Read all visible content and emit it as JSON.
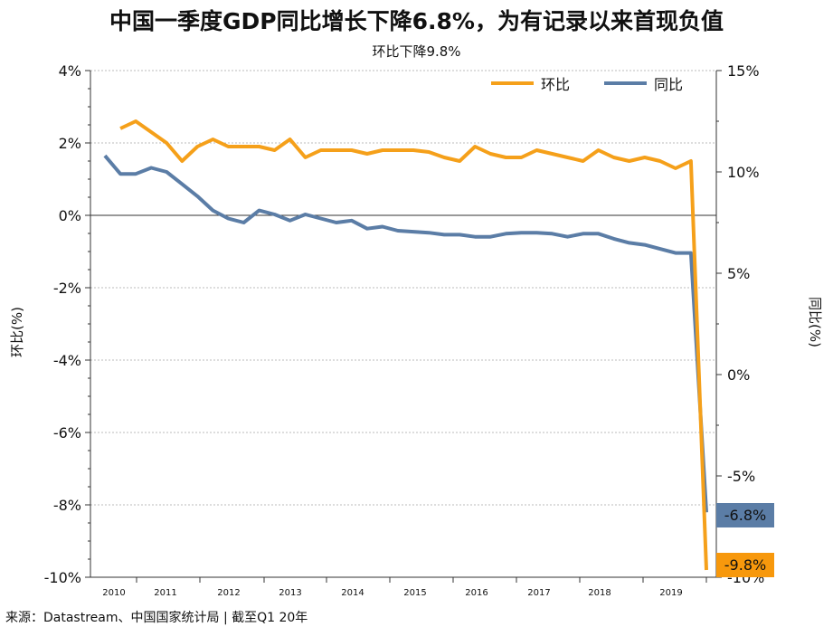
{
  "header": {
    "title": "中国一季度GDP同比增长下降6.8%，为有记录以来首现负值",
    "subtitle": "环比下降9.8%"
  },
  "footer": {
    "source": "来源：Datastream、中国国家统计局 | 截至Q1 20年"
  },
  "colors": {
    "qoq": "#f5a01a",
    "yoy": "#5b7da6",
    "qoq_badge": "#f7980c",
    "yoy_badge": "#5b7da6"
  },
  "chart_data": {
    "type": "line",
    "title": "中国一季度GDP同比增长下降6.8%，为有记录以来首现负值",
    "subtitle": "环比下降9.8%",
    "ylabel_left": "环比(%)",
    "ylabel_right": "同比(%)",
    "ylim_left": [
      -10,
      4
    ],
    "ylim_right": [
      -10,
      15
    ],
    "yticks_left": [
      "4%",
      "2%",
      "0%",
      "-2%",
      "-4%",
      "-6%",
      "-8%",
      "-10%"
    ],
    "yticks_right": [
      "15%",
      "10%",
      "5%",
      "0%",
      "-5%",
      "-10%"
    ],
    "xticks": [
      "2010",
      "2011",
      "2012",
      "2013",
      "2014",
      "2015",
      "2016",
      "2017",
      "2018",
      "2019"
    ],
    "grid": true,
    "legend_position": "top-right",
    "x_description": "quarters 2010Q1 – 2020Q1",
    "series": [
      {
        "name": "环比",
        "axis": "left",
        "values": [
          null,
          2.4,
          2.6,
          2.3,
          2.0,
          1.5,
          1.9,
          2.1,
          1.9,
          1.9,
          1.9,
          1.8,
          2.1,
          1.6,
          1.8,
          1.8,
          1.8,
          1.7,
          1.8,
          1.8,
          1.8,
          1.75,
          1.6,
          1.5,
          1.9,
          1.7,
          1.6,
          1.6,
          1.8,
          1.7,
          1.6,
          1.5,
          1.8,
          1.6,
          1.5,
          1.6,
          1.5,
          1.3,
          1.5,
          -9.8
        ]
      },
      {
        "name": "同比",
        "axis": "right",
        "values": [
          10.8,
          9.9,
          9.9,
          10.2,
          10.0,
          9.4,
          8.8,
          8.1,
          7.7,
          7.5,
          8.1,
          7.9,
          7.6,
          7.9,
          7.7,
          7.5,
          7.6,
          7.2,
          7.3,
          7.1,
          7.05,
          7.0,
          6.9,
          6.9,
          6.8,
          6.8,
          6.95,
          7.0,
          7.0,
          6.95,
          6.8,
          6.95,
          6.95,
          6.7,
          6.5,
          6.4,
          6.2,
          6.0,
          6.0,
          -6.8
        ]
      }
    ],
    "annotations": [
      "-6.8%",
      "-9.8%"
    ]
  }
}
